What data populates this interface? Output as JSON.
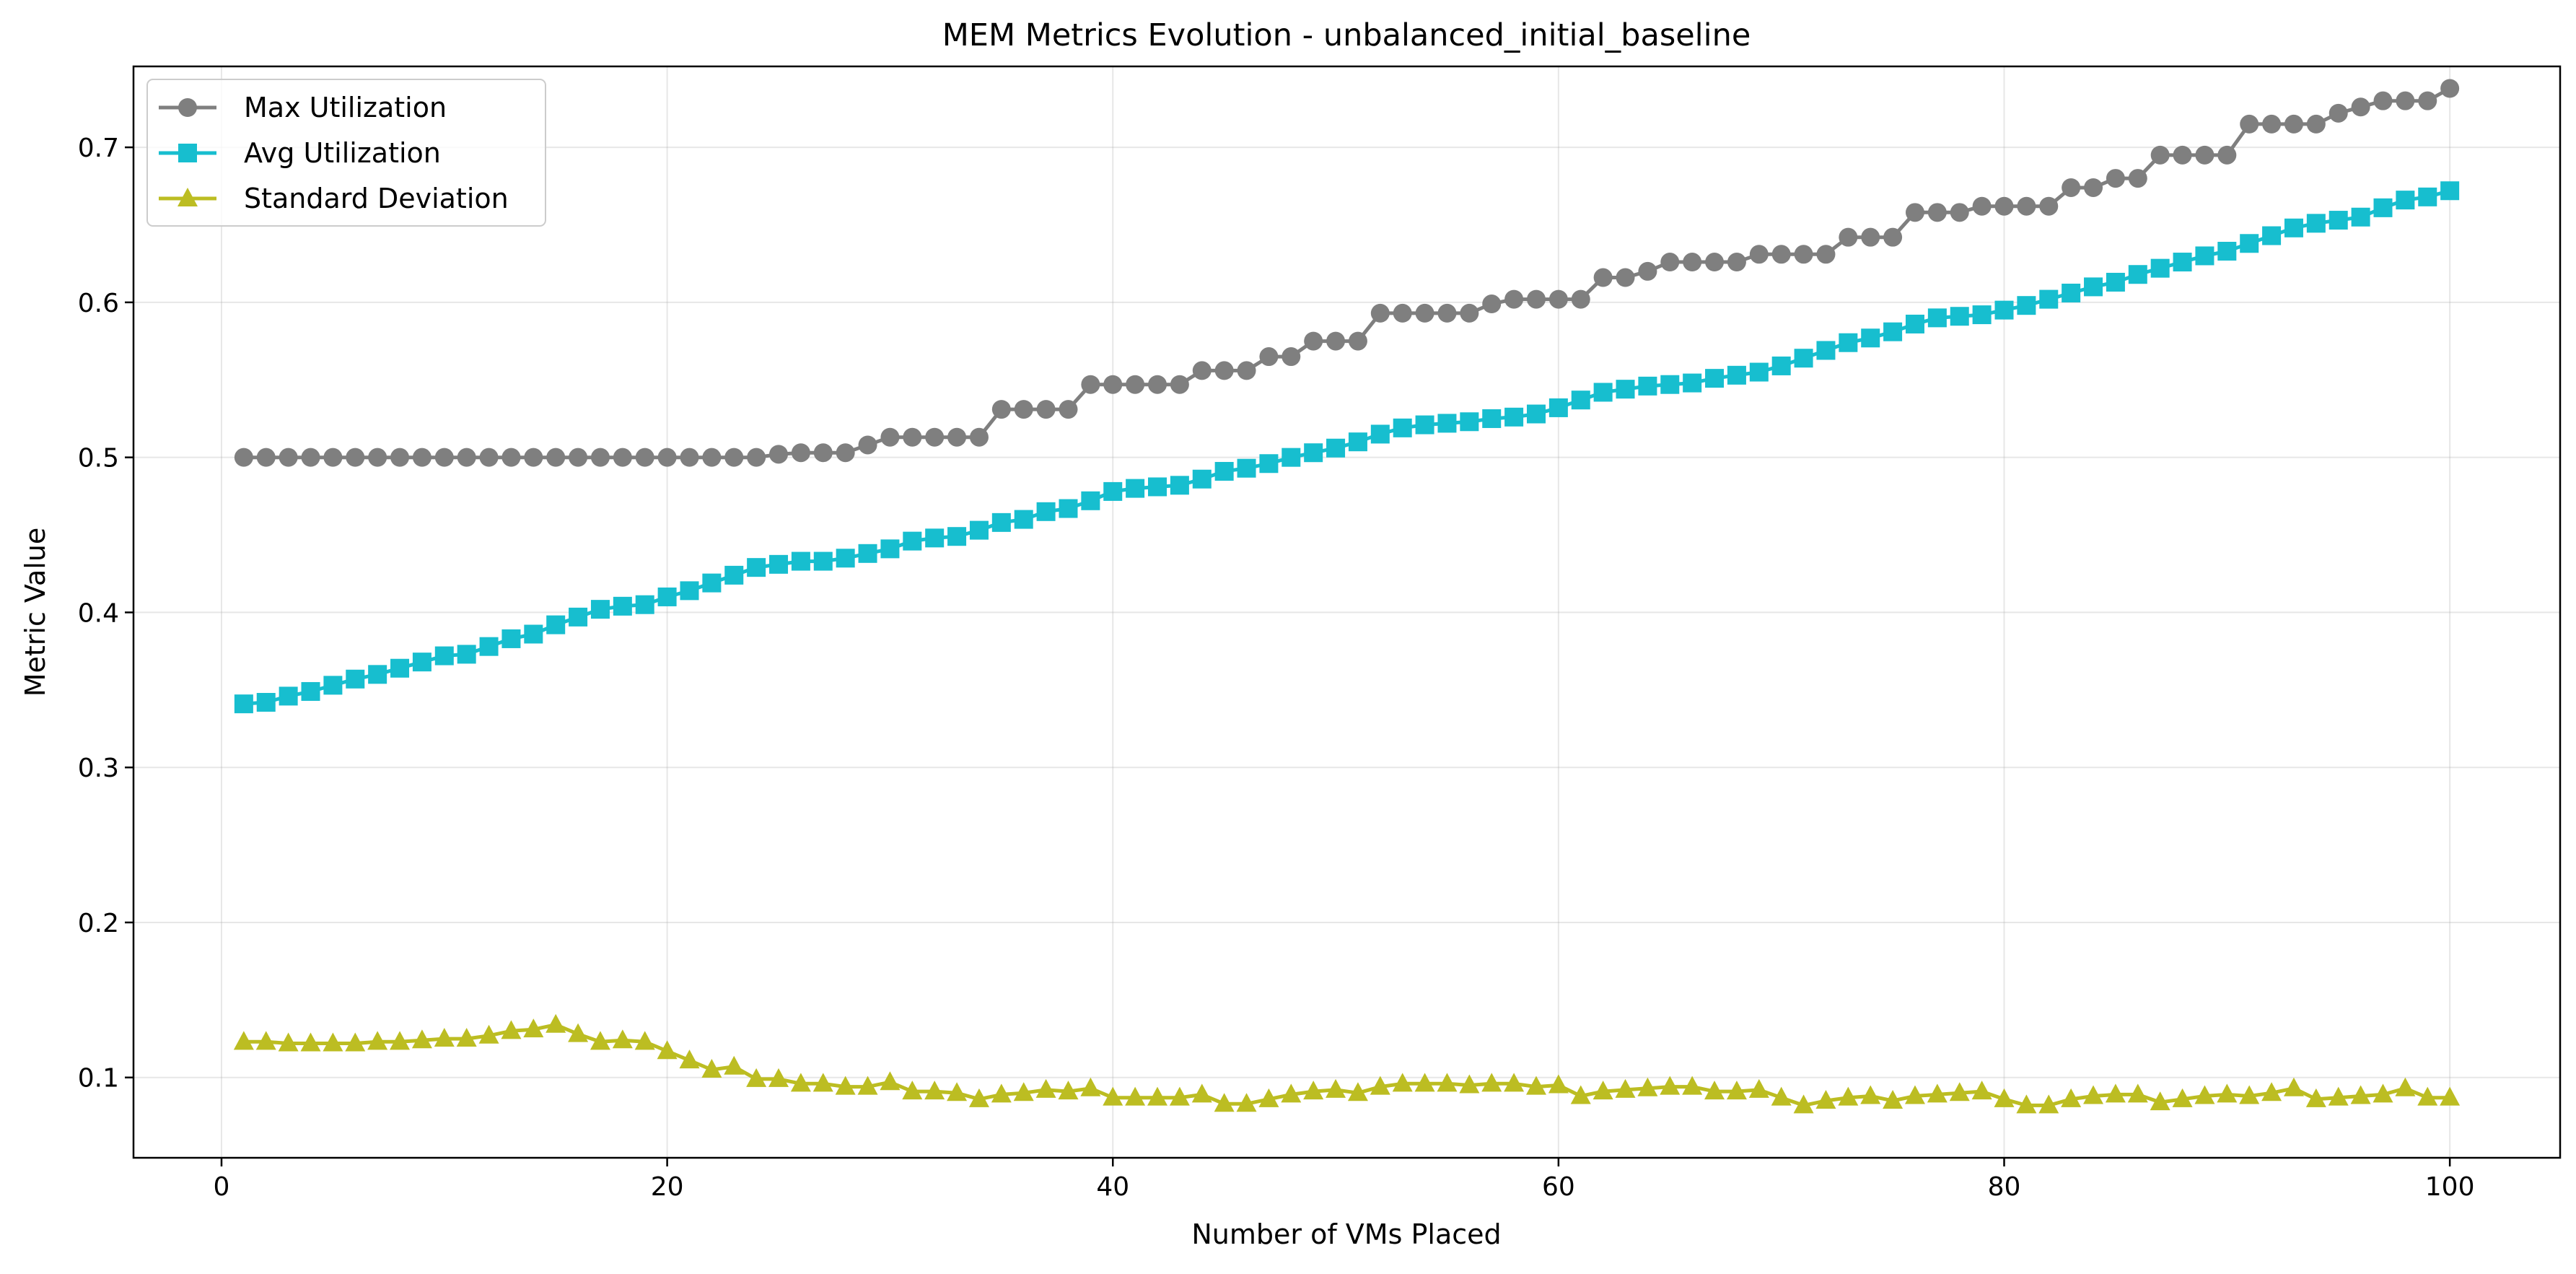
{
  "chart_data": {
    "type": "line",
    "title": "MEM Metrics Evolution - unbalanced_initial_baseline",
    "xlabel": "Number of VMs Placed",
    "ylabel": "Metric Value",
    "xlim": [
      -3.95,
      104.95
    ],
    "ylim": [
      0.0482,
      0.7522
    ],
    "xticks": [
      0,
      20,
      40,
      60,
      80,
      100
    ],
    "yticks": [
      0.1,
      0.2,
      0.3,
      0.4,
      0.5,
      0.6,
      0.7
    ],
    "grid": true,
    "legend_position": "upper left",
    "x_start": 1,
    "series": [
      {
        "name": "Max Utilization",
        "color": "#7f7f7f",
        "marker": "circle",
        "values": [
          0.5,
          0.5,
          0.5,
          0.5,
          0.5,
          0.5,
          0.5,
          0.5,
          0.5,
          0.5,
          0.5,
          0.5,
          0.5,
          0.5,
          0.5,
          0.5,
          0.5,
          0.5,
          0.5,
          0.5,
          0.5,
          0.5,
          0.5,
          0.5,
          0.502,
          0.503,
          0.503,
          0.503,
          0.508,
          0.513,
          0.513,
          0.513,
          0.513,
          0.513,
          0.531,
          0.531,
          0.531,
          0.531,
          0.547,
          0.547,
          0.547,
          0.547,
          0.547,
          0.556,
          0.556,
          0.556,
          0.565,
          0.565,
          0.575,
          0.575,
          0.575,
          0.593,
          0.593,
          0.593,
          0.593,
          0.593,
          0.599,
          0.602,
          0.602,
          0.602,
          0.602,
          0.616,
          0.616,
          0.62,
          0.626,
          0.626,
          0.626,
          0.626,
          0.631,
          0.631,
          0.631,
          0.631,
          0.642,
          0.642,
          0.642,
          0.658,
          0.658,
          0.658,
          0.662,
          0.662,
          0.662,
          0.662,
          0.674,
          0.674,
          0.68,
          0.68,
          0.695,
          0.695,
          0.695,
          0.695,
          0.715,
          0.715,
          0.715,
          0.715,
          0.722,
          0.726,
          0.73,
          0.73,
          0.73,
          0.738
        ]
      },
      {
        "name": "Avg Utilization",
        "color": "#17becf",
        "marker": "square",
        "values": [
          0.341,
          0.342,
          0.346,
          0.349,
          0.353,
          0.357,
          0.36,
          0.364,
          0.368,
          0.372,
          0.373,
          0.378,
          0.383,
          0.386,
          0.392,
          0.397,
          0.402,
          0.404,
          0.405,
          0.41,
          0.414,
          0.419,
          0.424,
          0.429,
          0.431,
          0.433,
          0.433,
          0.435,
          0.438,
          0.441,
          0.446,
          0.448,
          0.449,
          0.453,
          0.458,
          0.46,
          0.465,
          0.467,
          0.472,
          0.478,
          0.48,
          0.481,
          0.482,
          0.486,
          0.491,
          0.493,
          0.496,
          0.5,
          0.503,
          0.506,
          0.51,
          0.515,
          0.519,
          0.521,
          0.522,
          0.523,
          0.525,
          0.526,
          0.528,
          0.532,
          0.537,
          0.542,
          0.544,
          0.546,
          0.547,
          0.548,
          0.551,
          0.553,
          0.555,
          0.559,
          0.564,
          0.569,
          0.574,
          0.577,
          0.581,
          0.586,
          0.59,
          0.591,
          0.592,
          0.595,
          0.598,
          0.602,
          0.606,
          0.61,
          0.613,
          0.618,
          0.622,
          0.626,
          0.63,
          0.633,
          0.638,
          0.643,
          0.648,
          0.651,
          0.653,
          0.655,
          0.661,
          0.666,
          0.668,
          0.672
        ]
      },
      {
        "name": "Standard Deviation",
        "color": "#bcbd22",
        "marker": "triangle",
        "values": [
          0.123,
          0.123,
          0.122,
          0.122,
          0.122,
          0.122,
          0.123,
          0.123,
          0.124,
          0.125,
          0.125,
          0.127,
          0.13,
          0.131,
          0.134,
          0.128,
          0.123,
          0.124,
          0.123,
          0.117,
          0.111,
          0.105,
          0.107,
          0.099,
          0.099,
          0.096,
          0.096,
          0.094,
          0.094,
          0.097,
          0.091,
          0.091,
          0.09,
          0.086,
          0.089,
          0.09,
          0.092,
          0.091,
          0.093,
          0.087,
          0.087,
          0.087,
          0.087,
          0.089,
          0.083,
          0.083,
          0.086,
          0.089,
          0.091,
          0.092,
          0.09,
          0.094,
          0.096,
          0.096,
          0.096,
          0.095,
          0.096,
          0.096,
          0.094,
          0.095,
          0.088,
          0.091,
          0.092,
          0.093,
          0.094,
          0.094,
          0.091,
          0.091,
          0.092,
          0.087,
          0.082,
          0.085,
          0.087,
          0.088,
          0.085,
          0.088,
          0.089,
          0.09,
          0.091,
          0.086,
          0.082,
          0.082,
          0.086,
          0.088,
          0.089,
          0.089,
          0.084,
          0.086,
          0.088,
          0.089,
          0.088,
          0.09,
          0.093,
          0.086,
          0.087,
          0.088,
          0.089,
          0.093,
          0.087,
          0.087
        ]
      }
    ]
  }
}
